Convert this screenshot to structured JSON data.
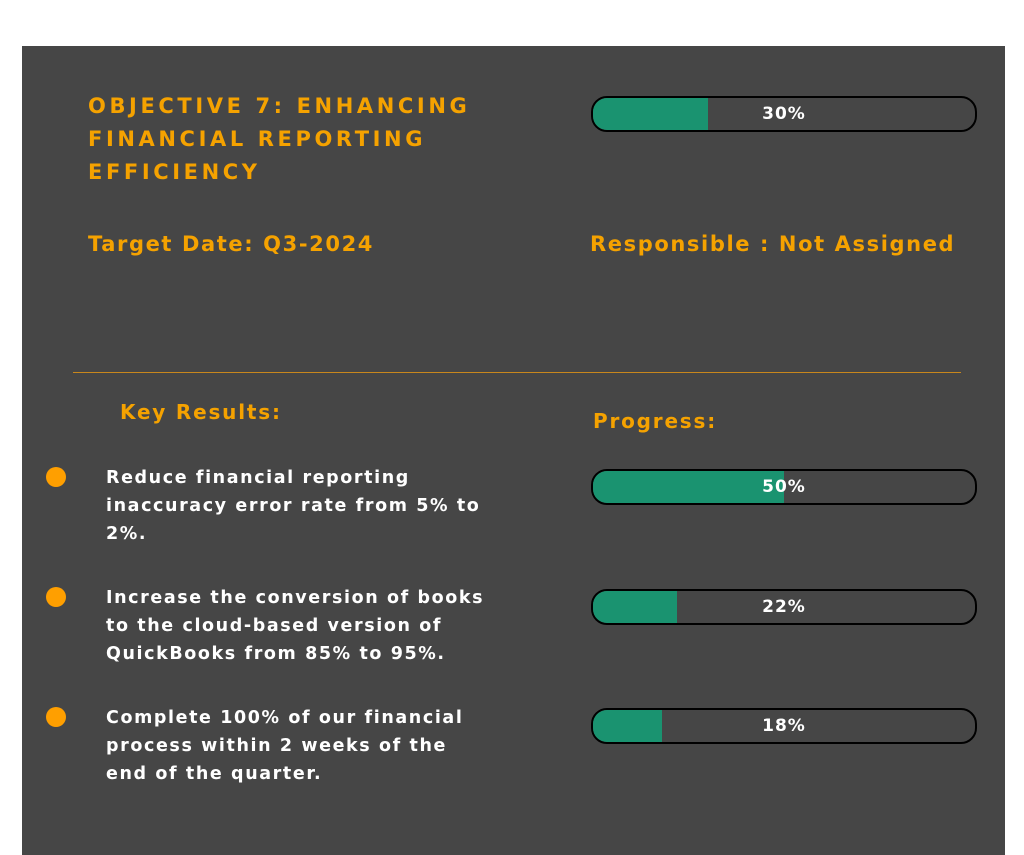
{
  "objective": {
    "title": "OBJECTIVE 7: ENHANCING FINANCIAL REPORTING EFFICIENCY",
    "progress_pct": 30,
    "progress_label": "30%",
    "target_date": "Target Date: Q3-2024",
    "responsible": "Responsible : Not Assigned"
  },
  "headings": {
    "key_results": "Key Results:",
    "progress": "Progress:"
  },
  "key_results": [
    {
      "text": "Reduce financial reporting inaccuracy error rate from 5% to 2%.",
      "progress_pct": 50,
      "progress_label": "50%"
    },
    {
      "text": "Increase the conversion of books to the cloud-based version of QuickBooks from 85% to 95%.",
      "progress_pct": 22,
      "progress_label": "22%"
    },
    {
      "text": "Complete 100% of our financial process within 2 weeks of the end of the quarter.",
      "progress_pct": 18,
      "progress_label": "18%"
    }
  ],
  "colors": {
    "background": "#464646",
    "accent": "#f5a200",
    "bullet": "#ff9f00",
    "progress_fill": "#1a9370",
    "text": "#ffffff"
  }
}
